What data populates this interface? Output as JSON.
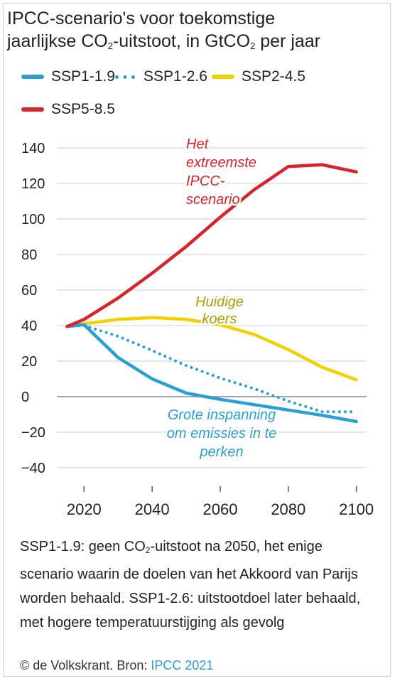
{
  "title": {
    "line1": "IPCC-scenario's voor toekomstige",
    "line2_a": "jaarlijkse CO",
    "line2_sub": "2",
    "line2_b": "-uitstoot, in GtCO",
    "line2_sub2": "2",
    "line2_c": " per jaar"
  },
  "chart_data": {
    "type": "line",
    "title": "IPCC-scenario's voor toekomstige jaarlijkse CO2-uitstoot, in GtCO2 per jaar",
    "xlabel": "",
    "ylabel": "",
    "xlim": [
      2012,
      2103
    ],
    "ylim": [
      -40,
      140
    ],
    "xticks": [
      2020,
      2040,
      2060,
      2080,
      2100
    ],
    "yticks": [
      140,
      120,
      100,
      80,
      60,
      40,
      20,
      0,
      -20,
      -40
    ],
    "ytick_labels": [
      "140",
      "120",
      "100",
      "80",
      "60",
      "40",
      "20",
      "0",
      "−20",
      "−40"
    ],
    "grid": "horizontal",
    "legend_position": "top",
    "series": [
      {
        "name": "SSP1-1.9",
        "color": "#2a9fd6",
        "style": "solid",
        "points": [
          [
            2015,
            39.5
          ],
          [
            2020,
            40.5
          ],
          [
            2030,
            22
          ],
          [
            2040,
            10
          ],
          [
            2050,
            2
          ],
          [
            2060,
            -1.5
          ],
          [
            2070,
            -4.5
          ],
          [
            2080,
            -7.5
          ],
          [
            2090,
            -10.5
          ],
          [
            2100,
            -14
          ]
        ]
      },
      {
        "name": "SSP1-2.6",
        "color": "#2a9fd6",
        "style": "dotted",
        "points": [
          [
            2015,
            39.5
          ],
          [
            2020,
            40
          ],
          [
            2030,
            34
          ],
          [
            2040,
            26
          ],
          [
            2050,
            17.5
          ],
          [
            2060,
            10.5
          ],
          [
            2070,
            4.5
          ],
          [
            2080,
            -2.5
          ],
          [
            2090,
            -8.5
          ],
          [
            2100,
            -8.5
          ]
        ]
      },
      {
        "name": "SSP2-4.5",
        "color": "#f5d000",
        "style": "solid",
        "points": [
          [
            2015,
            39.5
          ],
          [
            2020,
            41
          ],
          [
            2030,
            43.5
          ],
          [
            2040,
            44.5
          ],
          [
            2050,
            43.5
          ],
          [
            2060,
            40.5
          ],
          [
            2070,
            35
          ],
          [
            2080,
            26.5
          ],
          [
            2090,
            16.5
          ],
          [
            2100,
            9.5
          ]
        ]
      },
      {
        "name": "SSP5-8.5",
        "color": "#d8232a",
        "style": "solid",
        "points": [
          [
            2015,
            39.5
          ],
          [
            2020,
            43.5
          ],
          [
            2030,
            55.5
          ],
          [
            2040,
            69.5
          ],
          [
            2050,
            84.5
          ],
          [
            2060,
            101
          ],
          [
            2070,
            116.5
          ],
          [
            2080,
            129.5
          ],
          [
            2090,
            130.5
          ],
          [
            2100,
            126.5
          ]
        ]
      }
    ],
    "annotations": [
      {
        "series": "SSP5-8.5",
        "lines": [
          "Het",
          "extreemste",
          "IPCC-",
          "scenario"
        ]
      },
      {
        "series": "SSP2-4.5",
        "lines": [
          "Huidige",
          "koers"
        ]
      },
      {
        "series": "SSP1-1.9",
        "lines": [
          "Grote inspanning",
          "om emissies in te",
          "perken"
        ]
      }
    ]
  },
  "caption": {
    "p1": "SSP1-1.9: geen CO",
    "sub": "2",
    "p2": "-uitstoot na 2050, het enige scenario waarin de doelen van het Akkoord van Parijs worden behaald. SSP1-2.6: uitstootdoel later behaald, met hogere temperatuurstijging als gevolg"
  },
  "source": {
    "prefix": "© de Volkskrant. Bron: ",
    "link": "IPCC 2021"
  },
  "colors": {
    "gridline": "#cfcfcf",
    "axis": "#555555",
    "annotation_red": "#d8232a",
    "annotation_yellow": "#b89a00",
    "annotation_blue": "#2a9fd6"
  }
}
